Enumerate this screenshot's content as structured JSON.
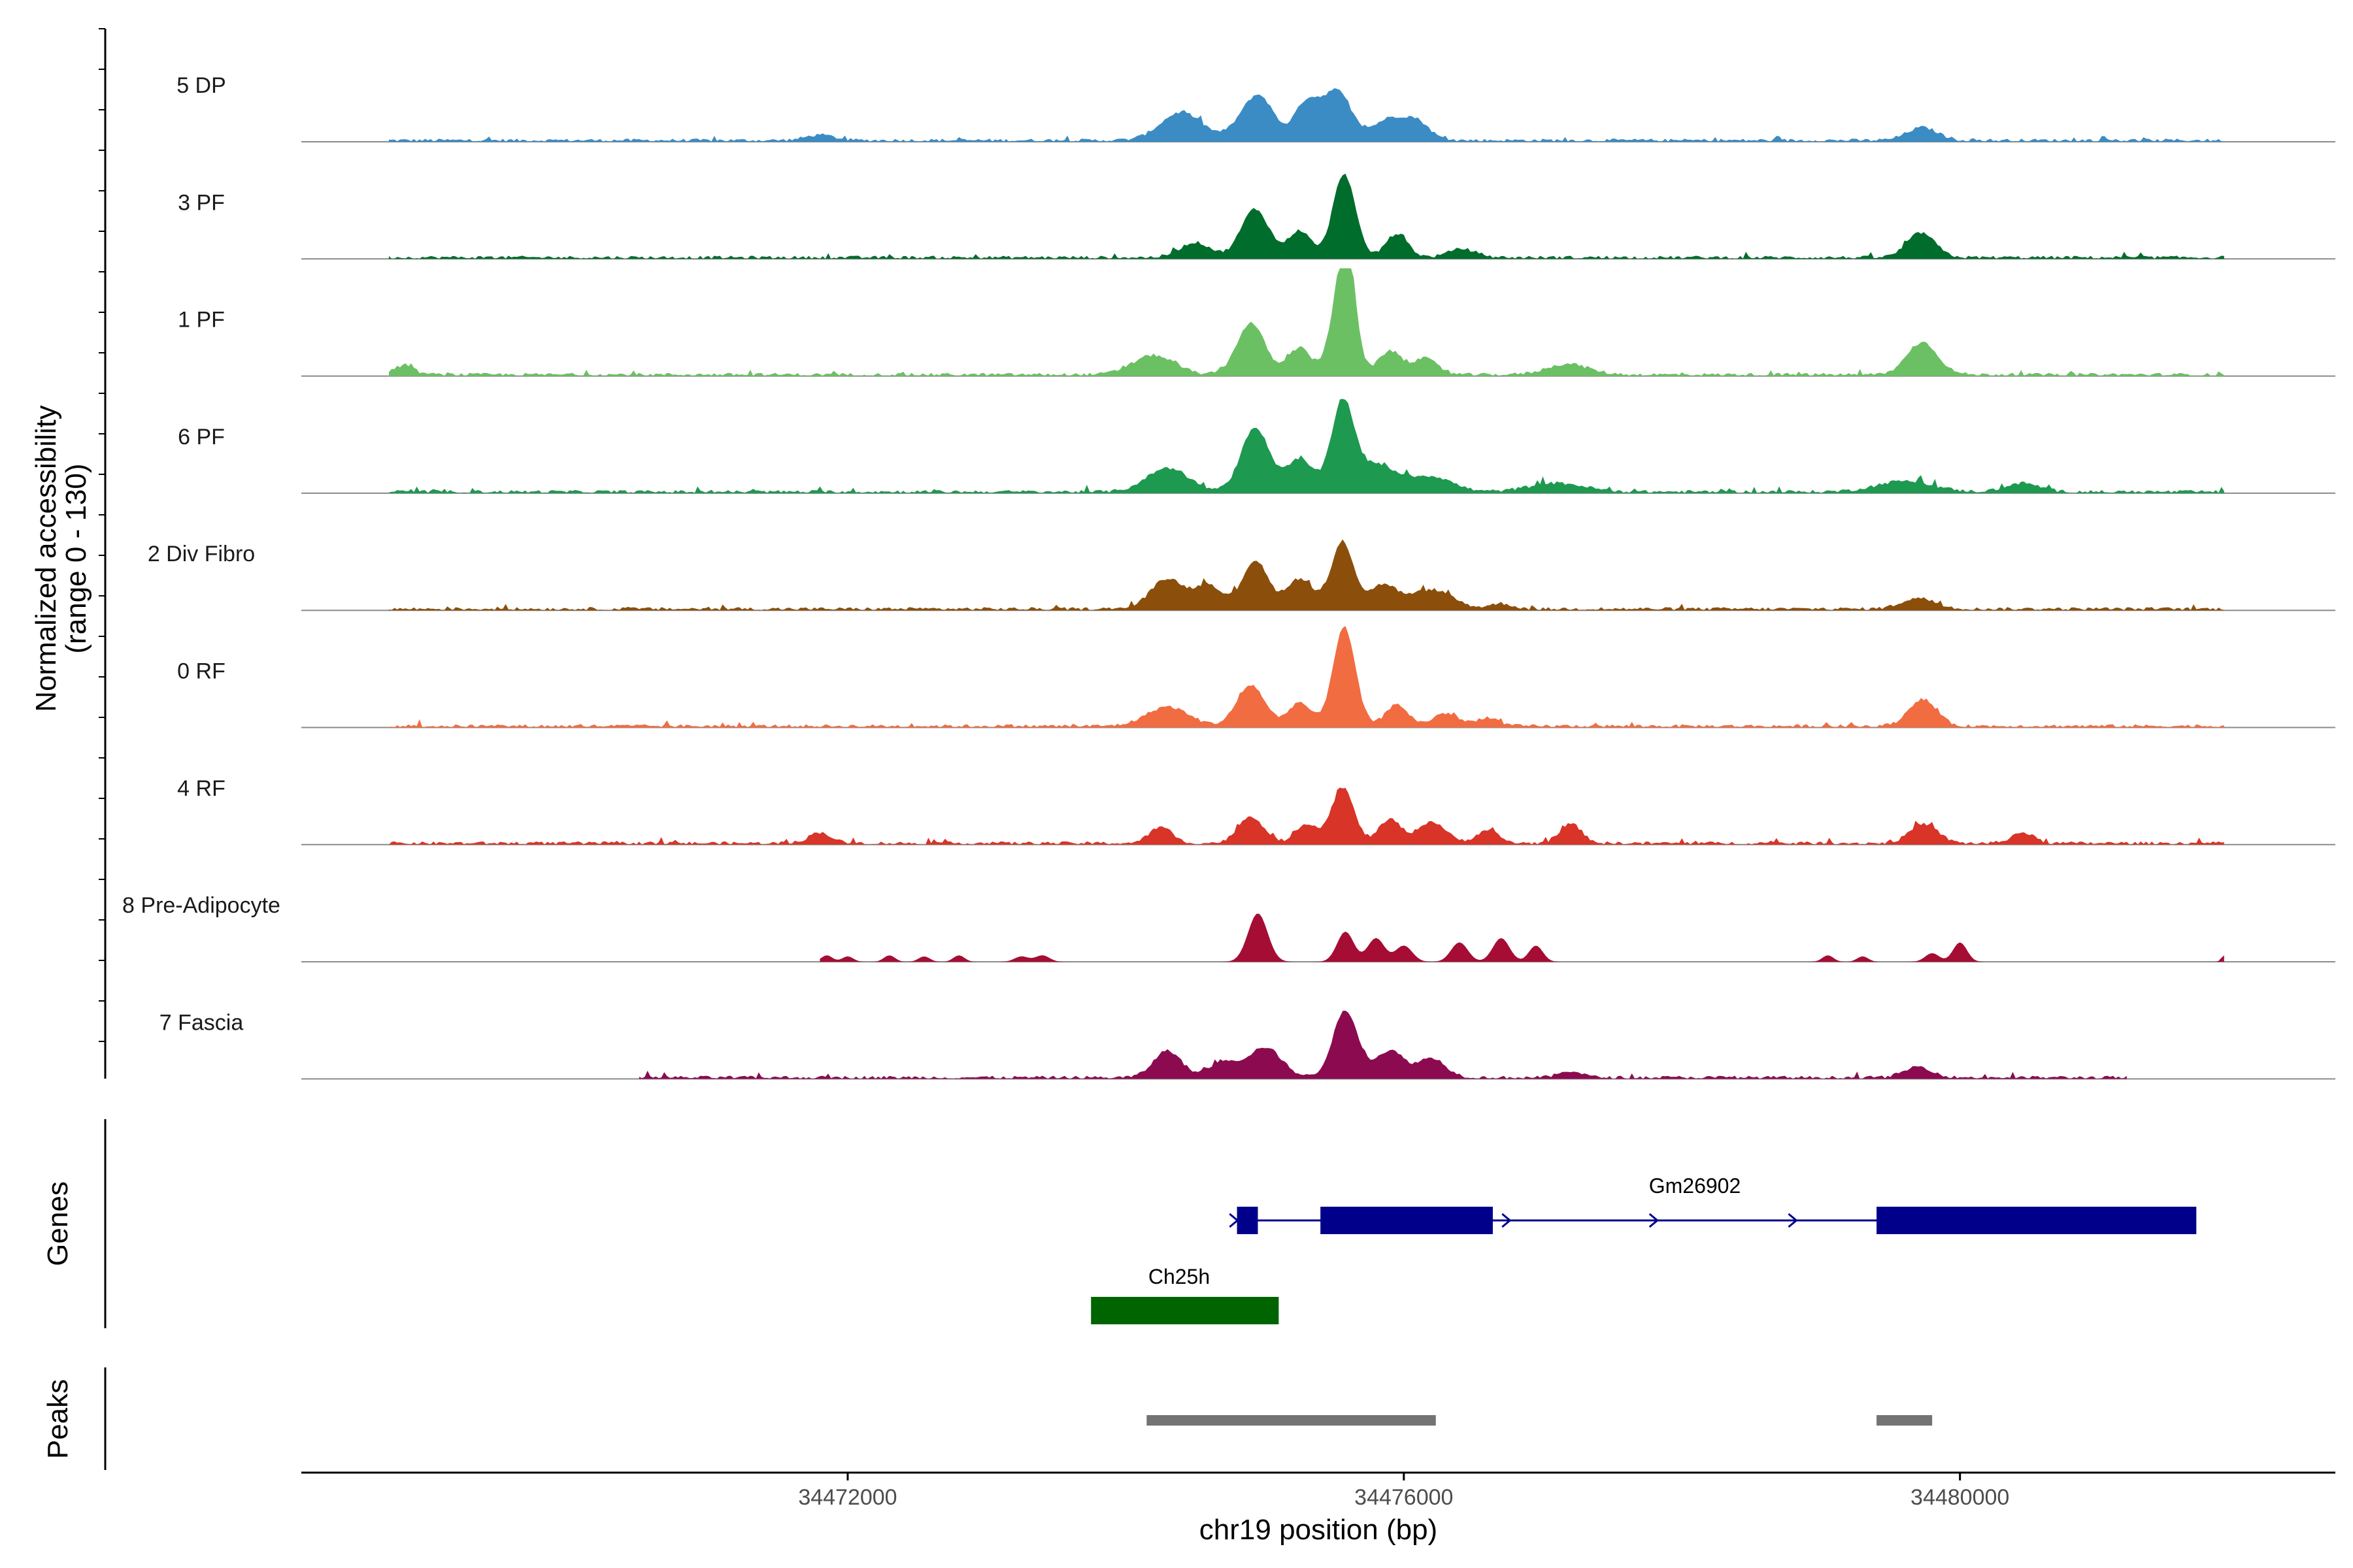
{
  "chart_data": {
    "type": "area",
    "title": "",
    "ylabel_lines": [
      "Normalized accessibility",
      "(range 0 - 130)"
    ],
    "y_range": [
      0,
      130
    ],
    "xlabel": "chr19 position (bp)",
    "x_range": [
      34468070,
      34482700
    ],
    "x_ticks": [
      {
        "value": 34472000,
        "label": "34472000"
      },
      {
        "value": 34476000,
        "label": "34476000"
      },
      {
        "value": 34480000,
        "label": "34480000"
      }
    ],
    "region_start": 34468700,
    "region_end": 34481900,
    "tracks": [
      {
        "name": "5 DP",
        "color": "#3B8CC4",
        "baseline": 0.03,
        "noise": 0.05,
        "lo": 34468700,
        "hi": 34481900,
        "peaks": [
          [
            34474400,
            150,
            0.26
          ],
          [
            34474900,
            110,
            0.28
          ],
          [
            34475000,
            90,
            0.2
          ],
          [
            34475520,
            100,
            0.45
          ],
          [
            34475900,
            120,
            0.2
          ],
          [
            34475300,
            90,
            0.35
          ],
          [
            34476100,
            90,
            0.15
          ],
          [
            34479730,
            110,
            0.12
          ],
          [
            34471800,
            100,
            0.05
          ]
        ]
      },
      {
        "name": "3 PF",
        "color": "#006D2C",
        "baseline": 0.03,
        "noise": 0.05,
        "lo": 34468700,
        "hi": 34481900,
        "peaks": [
          [
            34474500,
            110,
            0.14
          ],
          [
            34474930,
            100,
            0.45
          ],
          [
            34475570,
            80,
            0.78
          ],
          [
            34475950,
            80,
            0.22
          ],
          [
            34476420,
            100,
            0.08
          ],
          [
            34479720,
            100,
            0.23
          ],
          [
            34475250,
            80,
            0.25
          ]
        ]
      },
      {
        "name": "1 PF",
        "color": "#6CC064",
        "baseline": 0.03,
        "noise": 0.05,
        "lo": 34468700,
        "hi": 34481900,
        "peaks": [
          [
            34474200,
            150,
            0.18
          ],
          [
            34474900,
            100,
            0.48
          ],
          [
            34475560,
            80,
            0.88
          ],
          [
            34475600,
            50,
            0.5
          ],
          [
            34475900,
            80,
            0.22
          ],
          [
            34476150,
            90,
            0.15
          ],
          [
            34477180,
            150,
            0.1
          ],
          [
            34479730,
            110,
            0.3
          ],
          [
            34468800,
            80,
            0.08
          ],
          [
            34475250,
            80,
            0.25
          ]
        ]
      },
      {
        "name": "6 PF",
        "color": "#1E9950",
        "baseline": 0.03,
        "noise": 0.06,
        "lo": 34468700,
        "hi": 34481900,
        "peaks": [
          [
            34474300,
            150,
            0.22
          ],
          [
            34474930,
            100,
            0.6
          ],
          [
            34475560,
            80,
            0.8
          ],
          [
            34475250,
            100,
            0.3
          ],
          [
            34475800,
            150,
            0.25
          ],
          [
            34476200,
            150,
            0.14
          ],
          [
            34477100,
            200,
            0.08
          ],
          [
            34479600,
            200,
            0.1
          ],
          [
            34480450,
            120,
            0.08
          ]
        ]
      },
      {
        "name": "2 Div Fibro",
        "color": "#8B4F0B",
        "baseline": 0.03,
        "noise": 0.05,
        "lo": 34468700,
        "hi": 34481900,
        "peaks": [
          [
            34474300,
            120,
            0.28
          ],
          [
            34474600,
            100,
            0.22
          ],
          [
            34474930,
            90,
            0.45
          ],
          [
            34475560,
            80,
            0.62
          ],
          [
            34475250,
            100,
            0.28
          ],
          [
            34475850,
            100,
            0.22
          ],
          [
            34476200,
            150,
            0.18
          ],
          [
            34479700,
            120,
            0.1
          ],
          [
            34476700,
            80,
            0.05
          ]
        ]
      },
      {
        "name": "0 RF",
        "color": "#F26C42",
        "baseline": 0.03,
        "noise": 0.05,
        "lo": 34468700,
        "hi": 34481900,
        "peaks": [
          [
            34474300,
            150,
            0.18
          ],
          [
            34474900,
            100,
            0.38
          ],
          [
            34475570,
            80,
            0.92
          ],
          [
            34475950,
            80,
            0.2
          ],
          [
            34476300,
            90,
            0.12
          ],
          [
            34476600,
            80,
            0.08
          ],
          [
            34479730,
            100,
            0.25
          ],
          [
            34475250,
            80,
            0.22
          ]
        ]
      },
      {
        "name": "4 RF",
        "color": "#D83427",
        "baseline": 0.03,
        "noise": 0.05,
        "lo": 34468700,
        "hi": 34481900,
        "peaks": [
          [
            34474250,
            80,
            0.15
          ],
          [
            34474900,
            90,
            0.25
          ],
          [
            34475560,
            80,
            0.52
          ],
          [
            34475900,
            80,
            0.22
          ],
          [
            34476200,
            100,
            0.2
          ],
          [
            34475300,
            80,
            0.18
          ],
          [
            34476600,
            80,
            0.12
          ],
          [
            34477200,
            80,
            0.18
          ],
          [
            34479740,
            100,
            0.18
          ],
          [
            34480450,
            80,
            0.1
          ],
          [
            34471800,
            80,
            0.1
          ]
        ]
      },
      {
        "name": "8 Pre-Adipocyte",
        "color": "#A50D35",
        "baseline": 0.0,
        "noise": 0.0,
        "lo": 34471800,
        "hi": 34481900,
        "peaks": [
          [
            34471850,
            40,
            0.06
          ],
          [
            34472000,
            40,
            0.05
          ],
          [
            34472300,
            40,
            0.06
          ],
          [
            34472550,
            40,
            0.05
          ],
          [
            34472800,
            40,
            0.06
          ],
          [
            34473250,
            50,
            0.05
          ],
          [
            34473400,
            50,
            0.06
          ],
          [
            34474950,
            70,
            0.45
          ],
          [
            34475580,
            60,
            0.28
          ],
          [
            34475800,
            60,
            0.22
          ],
          [
            34476000,
            60,
            0.15
          ],
          [
            34476400,
            60,
            0.18
          ],
          [
            34476700,
            60,
            0.22
          ],
          [
            34476950,
            50,
            0.15
          ],
          [
            34479050,
            40,
            0.06
          ],
          [
            34479300,
            40,
            0.05
          ],
          [
            34479800,
            50,
            0.08
          ],
          [
            34480000,
            50,
            0.18
          ],
          [
            34481900,
            20,
            0.06
          ]
        ]
      },
      {
        "name": "7 Fascia",
        "color": "#8C0B50",
        "baseline": 0.03,
        "noise": 0.05,
        "lo": 34470500,
        "hi": 34481200,
        "peaks": [
          [
            34474300,
            100,
            0.25
          ],
          [
            34475000,
            120,
            0.28
          ],
          [
            34475580,
            90,
            0.62
          ],
          [
            34475900,
            100,
            0.25
          ],
          [
            34476200,
            100,
            0.18
          ],
          [
            34474700,
            100,
            0.15
          ],
          [
            34477200,
            80,
            0.06
          ],
          [
            34479700,
            100,
            0.1
          ]
        ]
      }
    ],
    "genes": [
      {
        "name": "Gm26902",
        "color": "#00008B",
        "start": 34474800,
        "end": 34481500,
        "strand": "+",
        "exons": [
          [
            34474800,
            34474950
          ],
          [
            34475400,
            34476640
          ],
          [
            34479400,
            34481700
          ]
        ],
        "arrows": [
          34474780,
          34476740,
          34477800,
          34478800
        ]
      },
      {
        "name": "Ch25h",
        "color": "#006400",
        "start": 34473750,
        "end": 34475100,
        "strand": "-",
        "exons": [
          [
            34473750,
            34475100
          ]
        ],
        "arrows": []
      }
    ],
    "peaks": [
      {
        "start": 34474150,
        "end": 34476230
      },
      {
        "start": 34479400,
        "end": 34479800
      }
    ],
    "panel_titles": {
      "genes": "Genes",
      "peaks": "Peaks"
    }
  }
}
